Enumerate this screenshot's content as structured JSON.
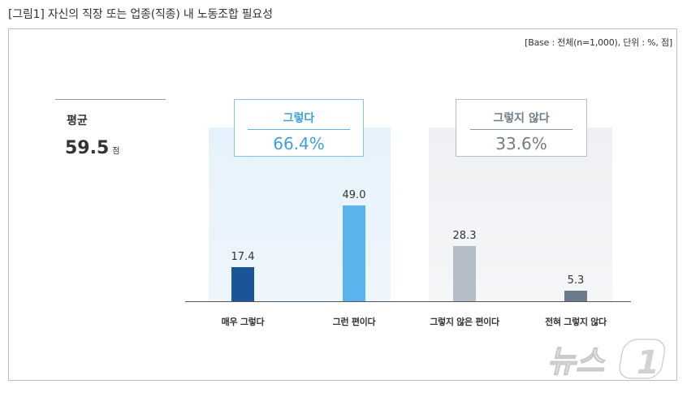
{
  "figure_title": "[그림1] 자신의 직장 또는 업종(직종) 내 노동조합 필요성",
  "base_note": "[Base : 전체(n=1,000), 단위 : %, 점]",
  "average": {
    "label": "평균",
    "value": "59.5",
    "unit": "점"
  },
  "groups": [
    {
      "label": "그렇다",
      "value": "66.4%"
    },
    {
      "label": "그렇지 않다",
      "value": "33.6%"
    }
  ],
  "watermark": "뉴스1",
  "chart_data": {
    "type": "bar",
    "categories": [
      "매우 그렇다",
      "그런 편이다",
      "그렇지 않은 편이다",
      "전혀 그렇지 않다"
    ],
    "values": [
      17.4,
      49.0,
      28.3,
      5.3
    ],
    "value_labels": [
      "17.4",
      "49.0",
      "28.3",
      "5.3"
    ],
    "colors": [
      "#1a5597",
      "#5ab4ec",
      "#b5bec7",
      "#6b7b8b"
    ],
    "ylim": [
      0,
      60
    ],
    "grid": false,
    "xlabel": "",
    "ylabel": ""
  }
}
